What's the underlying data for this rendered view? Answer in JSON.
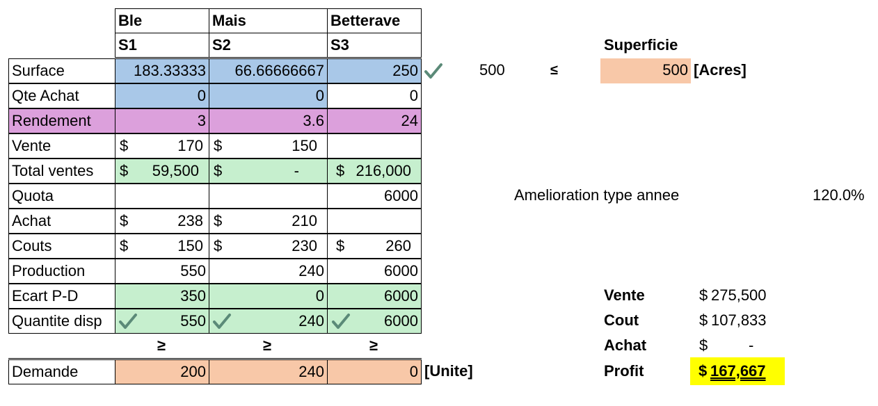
{
  "headers": {
    "crops": [
      "Ble",
      "Mais",
      "Betterave"
    ],
    "vars": [
      "S1",
      "S2",
      "S3"
    ]
  },
  "rows": [
    {
      "label": "Surface",
      "values": [
        "183.33333",
        "66.66666667",
        "250"
      ]
    },
    {
      "label": "Qte Achat",
      "values": [
        "0",
        "0",
        "0"
      ]
    },
    {
      "label": "Rendement",
      "values": [
        "3",
        "3.6",
        "24"
      ]
    },
    {
      "label": "Vente",
      "values": [
        {
          "sign": "$",
          "amount": "170"
        },
        {
          "sign": "$",
          "amount": "150"
        },
        ""
      ]
    },
    {
      "label": "Total ventes",
      "values": [
        {
          "sign": "$",
          "amount": "59,500"
        },
        {
          "sign": "$",
          "amount": "-"
        },
        {
          "sign": "$",
          "amount": "216,000"
        }
      ]
    },
    {
      "label": "Quota",
      "values": [
        "",
        "",
        "6000"
      ]
    },
    {
      "label": "Achat",
      "values": [
        {
          "sign": "$",
          "amount": "238"
        },
        {
          "sign": "$",
          "amount": "210"
        },
        ""
      ]
    },
    {
      "label": "Couts",
      "values": [
        {
          "sign": "$",
          "amount": "150"
        },
        {
          "sign": "$",
          "amount": "230"
        },
        {
          "sign": "$",
          "amount": "260"
        }
      ]
    },
    {
      "label": "Production",
      "values": [
        "550",
        "240",
        "6000"
      ]
    },
    {
      "label": "Ecart P-D",
      "values": [
        "350",
        "0",
        "6000"
      ]
    },
    {
      "label": "Quantite disp",
      "values": [
        "550",
        "240",
        "6000"
      ]
    }
  ],
  "inequality_symbols": {
    "ge": "≥",
    "le": "≤"
  },
  "demande": {
    "label": "Demande",
    "values": [
      "200",
      "240",
      "0"
    ],
    "unit": "[Unite]"
  },
  "superficie": {
    "title": "Superficie",
    "lhs": "500",
    "rhs": "500",
    "unit": "[Acres]"
  },
  "amelioration": {
    "label": "Amelioration type annee",
    "value": "120.0%"
  },
  "summary": {
    "vente": {
      "label": "Vente",
      "sign": "$",
      "amount": "275,500"
    },
    "cout": {
      "label": "Cout",
      "sign": "$",
      "amount": "107,833"
    },
    "achat": {
      "label": "Achat",
      "sign": "$",
      "amount": "-"
    },
    "profit": {
      "label": "Profit",
      "sign": "$",
      "amount": "167,667"
    }
  },
  "colors": {
    "input_blue": "#a9c8e8",
    "param_pink": "#dca0dc",
    "calc_green": "#c6efce",
    "constraint_salmon": "#f8c8a8",
    "profit_yellow": "#ffff00",
    "check_teal": "#5b8a78"
  }
}
